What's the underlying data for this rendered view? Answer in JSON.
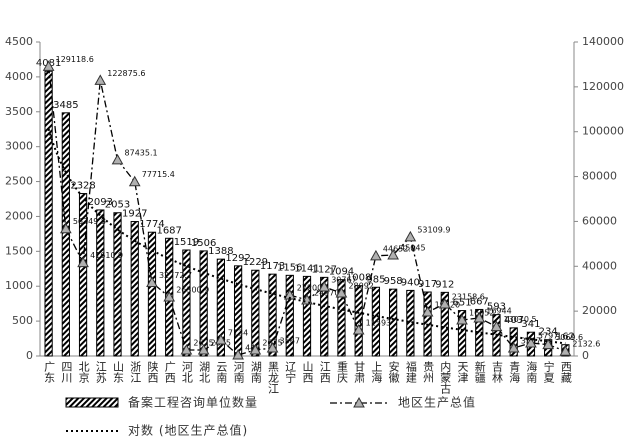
{
  "chart_data": {
    "type": "bar-line",
    "categories": [
      "广东",
      "四川",
      "北京",
      "江苏",
      "山东",
      "浙江",
      "陕西",
      "广西",
      "河北",
      "湖北",
      "云南",
      "河南",
      "湖南",
      "黑龙江",
      "辽宁",
      "山西",
      "江西",
      "重庆",
      "甘肃",
      "上海",
      "安徽",
      "福建",
      "贵州",
      "内蒙古",
      "天津",
      "新疆",
      "吉林",
      "青海",
      "海南",
      "宁夏",
      "西藏"
    ],
    "series": [
      {
        "name": "备案工程咨询单位数量",
        "type": "bar",
        "color": "#000000",
        "values": [
          4081,
          3485,
          2328,
          2093,
          2053,
          1927,
          1774,
          1687,
          1519,
          1506,
          1388,
          1292,
          1229,
          1173,
          1156,
          1141,
          1127,
          1094,
          1008,
          985,
          958,
          940,
          917,
          912,
          651,
          667,
          593,
          403,
          341,
          234,
          162
        ]
      },
      {
        "name": "地区生产总值",
        "type": "line",
        "axis": "y2",
        "color": "#000000",
        "marker_color": "#b0b0b0",
        "values": [
          129118.6,
          56749.8,
          41610.9,
          122875.6,
          87435.1,
          77715.4,
          32772.7,
          26300.9,
          2675,
          2675,
          7134,
          446,
          2675,
          3567,
          27200,
          24970,
          30767,
          28092,
          11593,
          44652.8,
          45045,
          53109.9,
          19620,
          23158.6,
          16052,
          16944,
          13070.5,
          3567,
          5797,
          5069.6,
          2132.6
        ]
      }
    ],
    "trendline": {
      "type": "log",
      "name": "对数 (地区生产总值)",
      "color": "#000000"
    },
    "ylim": [
      0,
      4500
    ],
    "yticks": [
      0,
      500,
      1000,
      1500,
      2000,
      2500,
      3000,
      3500,
      4000,
      4500
    ],
    "y2lim": [
      0,
      140000
    ],
    "y2ticks": [
      0,
      20000,
      40000,
      60000,
      80000,
      100000,
      120000,
      140000
    ],
    "grid": false
  }
}
